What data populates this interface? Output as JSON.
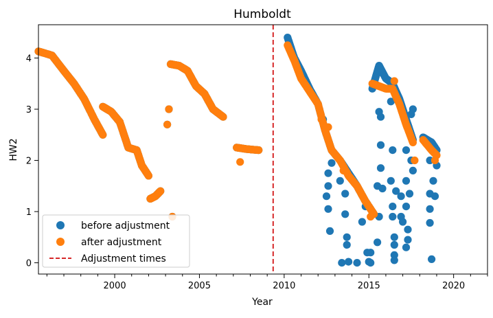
{
  "chart_data": {
    "type": "scatter",
    "title": "Humboldt",
    "xlabel": "Year",
    "ylabel": "HW2",
    "xlim": [
      1995.5,
      2022.0
    ],
    "ylim": [
      -0.22,
      4.65
    ],
    "x_ticks": [
      2000,
      2005,
      2010,
      2015,
      2020
    ],
    "y_ticks": [
      0,
      1,
      2,
      3,
      4
    ],
    "grid": false,
    "legend_placement": "lower-left",
    "colors": {
      "before": "#1f77b4",
      "after": "#ff7f0e",
      "adjustment": "#d62728"
    },
    "adjustment_times": [
      2009.35
    ],
    "series": [
      {
        "name": "before adjustment",
        "color": "#1f77b4",
        "segments": [
          [
            [
              1995.5,
              4.13
            ],
            [
              1996.3,
              4.05
            ],
            [
              1997.0,
              3.75
            ],
            [
              1997.6,
              3.5
            ],
            [
              1998.2,
              3.2
            ],
            [
              1998.8,
              2.8
            ],
            [
              1999.3,
              2.5
            ]
          ],
          [
            [
              1999.3,
              3.05
            ],
            [
              1999.8,
              2.95
            ],
            [
              2000.3,
              2.75
            ],
            [
              2000.8,
              2.25
            ],
            [
              2001.3,
              2.2
            ],
            [
              2001.6,
              1.9
            ],
            [
              2002.0,
              1.7
            ]
          ],
          [
            [
              2002.1,
              1.25
            ],
            [
              2002.4,
              1.3
            ],
            [
              2002.7,
              1.4
            ]
          ],
          [
            [
              2003.3,
              3.88
            ],
            [
              2003.8,
              3.85
            ],
            [
              2004.3,
              3.75
            ],
            [
              2004.8,
              3.45
            ],
            [
              2005.3,
              3.3
            ],
            [
              2005.8,
              3.0
            ],
            [
              2006.4,
              2.85
            ]
          ],
          [
            [
              2007.2,
              2.25
            ],
            [
              2007.8,
              2.22
            ],
            [
              2008.5,
              2.2
            ]
          ],
          [
            [
              2010.2,
              4.4
            ],
            [
              2010.6,
              4.0
            ],
            [
              2011.0,
              3.75
            ],
            [
              2011.5,
              3.4
            ],
            [
              2012.0,
              3.1
            ],
            [
              2012.4,
              2.6
            ],
            [
              2012.8,
              2.2
            ],
            [
              2013.3,
              2.0
            ],
            [
              2013.8,
              1.75
            ],
            [
              2014.3,
              1.5
            ],
            [
              2014.8,
              1.2
            ],
            [
              2015.3,
              0.95
            ]
          ],
          [
            [
              2015.2,
              3.4
            ],
            [
              2015.6,
              3.85
            ],
            [
              2016.0,
              3.6
            ],
            [
              2016.4,
              3.5
            ],
            [
              2016.8,
              3.2
            ],
            [
              2017.2,
              2.8
            ],
            [
              2017.6,
              2.4
            ]
          ],
          [
            [
              2018.2,
              2.45
            ],
            [
              2018.7,
              2.35
            ],
            [
              2019.0,
              2.2
            ]
          ]
        ],
        "points": [
          [
            2003.4,
            0.9
          ],
          [
            2003.1,
            2.7
          ],
          [
            2003.2,
            3.0
          ],
          [
            2012.3,
            2.8
          ],
          [
            2012.6,
            1.5
          ],
          [
            2012.5,
            1.3
          ],
          [
            2012.6,
            1.05
          ],
          [
            2012.7,
            0.62
          ],
          [
            2012.6,
            1.75
          ],
          [
            2012.8,
            1.95
          ],
          [
            2013.3,
            1.6
          ],
          [
            2013.6,
            1.35
          ],
          [
            2013.4,
            0.0
          ],
          [
            2013.8,
            0.02
          ],
          [
            2013.7,
            0.5
          ],
          [
            2013.7,
            0.35
          ],
          [
            2013.6,
            0.95
          ],
          [
            2014.0,
            1.65
          ],
          [
            2014.3,
            0.0
          ],
          [
            2014.6,
            0.8
          ],
          [
            2014.8,
            1.1
          ],
          [
            2014.9,
            0.2
          ],
          [
            2015.0,
            0.02
          ],
          [
            2015.1,
            0.0
          ],
          [
            2015.1,
            0.2
          ],
          [
            2015.5,
            0.4
          ],
          [
            2015.6,
            0.9
          ],
          [
            2015.5,
            1.5
          ],
          [
            2015.7,
            1.85
          ],
          [
            2015.7,
            2.3
          ],
          [
            2015.7,
            2.85
          ],
          [
            2015.6,
            2.95
          ],
          [
            2015.8,
            1.45
          ],
          [
            2016.3,
            3.15
          ],
          [
            2016.4,
            2.2
          ],
          [
            2016.3,
            1.6
          ],
          [
            2016.4,
            1.1
          ],
          [
            2016.4,
            0.9
          ],
          [
            2016.5,
            0.5
          ],
          [
            2016.5,
            0.35
          ],
          [
            2016.5,
            0.15
          ],
          [
            2016.5,
            0.05
          ],
          [
            2016.6,
            1.4
          ],
          [
            2016.9,
            1.3
          ],
          [
            2016.9,
            0.9
          ],
          [
            2017.0,
            0.8
          ],
          [
            2017.2,
            2.2
          ],
          [
            2017.2,
            1.6
          ],
          [
            2017.2,
            1.1
          ],
          [
            2017.3,
            0.65
          ],
          [
            2017.3,
            0.45
          ],
          [
            2017.2,
            0.3
          ],
          [
            2017.4,
            1.35
          ],
          [
            2017.5,
            2.0
          ],
          [
            2017.6,
            1.8
          ],
          [
            2017.6,
            3.0
          ],
          [
            2017.5,
            2.9
          ],
          [
            2018.6,
            1.35
          ],
          [
            2018.6,
            1.05
          ],
          [
            2018.6,
            0.78
          ],
          [
            2018.7,
            0.07
          ],
          [
            2018.8,
            1.6
          ],
          [
            2018.9,
            1.3
          ],
          [
            2019.0,
            1.9
          ],
          [
            2018.6,
            2.0
          ]
        ]
      },
      {
        "name": "after adjustment",
        "color": "#ff7f0e",
        "segments": [
          [
            [
              1995.5,
              4.13
            ],
            [
              1996.3,
              4.05
            ],
            [
              1997.0,
              3.75
            ],
            [
              1997.6,
              3.5
            ],
            [
              1998.2,
              3.2
            ],
            [
              1998.8,
              2.8
            ],
            [
              1999.3,
              2.5
            ]
          ],
          [
            [
              1999.3,
              3.05
            ],
            [
              1999.8,
              2.95
            ],
            [
              2000.3,
              2.75
            ],
            [
              2000.8,
              2.25
            ],
            [
              2001.3,
              2.2
            ],
            [
              2001.6,
              1.9
            ],
            [
              2002.0,
              1.7
            ]
          ],
          [
            [
              2002.1,
              1.25
            ],
            [
              2002.4,
              1.3
            ],
            [
              2002.7,
              1.4
            ]
          ],
          [
            [
              2003.3,
              3.88
            ],
            [
              2003.8,
              3.85
            ],
            [
              2004.3,
              3.75
            ],
            [
              2004.8,
              3.45
            ],
            [
              2005.3,
              3.3
            ],
            [
              2005.8,
              3.0
            ],
            [
              2006.4,
              2.85
            ]
          ],
          [
            [
              2007.2,
              2.25
            ],
            [
              2007.8,
              2.22
            ],
            [
              2008.5,
              2.2
            ]
          ],
          [
            [
              2010.2,
              4.25
            ],
            [
              2010.6,
              3.95
            ],
            [
              2011.0,
              3.6
            ],
            [
              2011.5,
              3.35
            ],
            [
              2012.0,
              3.1
            ],
            [
              2012.4,
              2.6
            ],
            [
              2012.8,
              2.2
            ],
            [
              2013.3,
              2.0
            ],
            [
              2013.8,
              1.7
            ],
            [
              2014.3,
              1.5
            ],
            [
              2014.8,
              1.2
            ],
            [
              2015.3,
              0.95
            ]
          ],
          [
            [
              2015.2,
              3.5
            ],
            [
              2015.6,
              3.45
            ],
            [
              2016.0,
              3.4
            ],
            [
              2016.4,
              3.4
            ],
            [
              2016.8,
              3.1
            ],
            [
              2017.2,
              2.7
            ],
            [
              2017.6,
              2.35
            ]
          ],
          [
            [
              2018.2,
              2.4
            ],
            [
              2018.7,
              2.2
            ],
            [
              2019.0,
              2.1
            ]
          ]
        ],
        "points": [
          [
            2003.4,
            0.9
          ],
          [
            2003.1,
            2.7
          ],
          [
            2003.2,
            3.0
          ],
          [
            2007.4,
            1.97
          ],
          [
            2012.2,
            2.8
          ],
          [
            2012.6,
            2.65
          ],
          [
            2013.5,
            1.8
          ],
          [
            2015.1,
            0.9
          ],
          [
            2016.5,
            3.55
          ],
          [
            2017.7,
            2.0
          ],
          [
            2018.9,
            2.0
          ]
        ]
      }
    ]
  }
}
